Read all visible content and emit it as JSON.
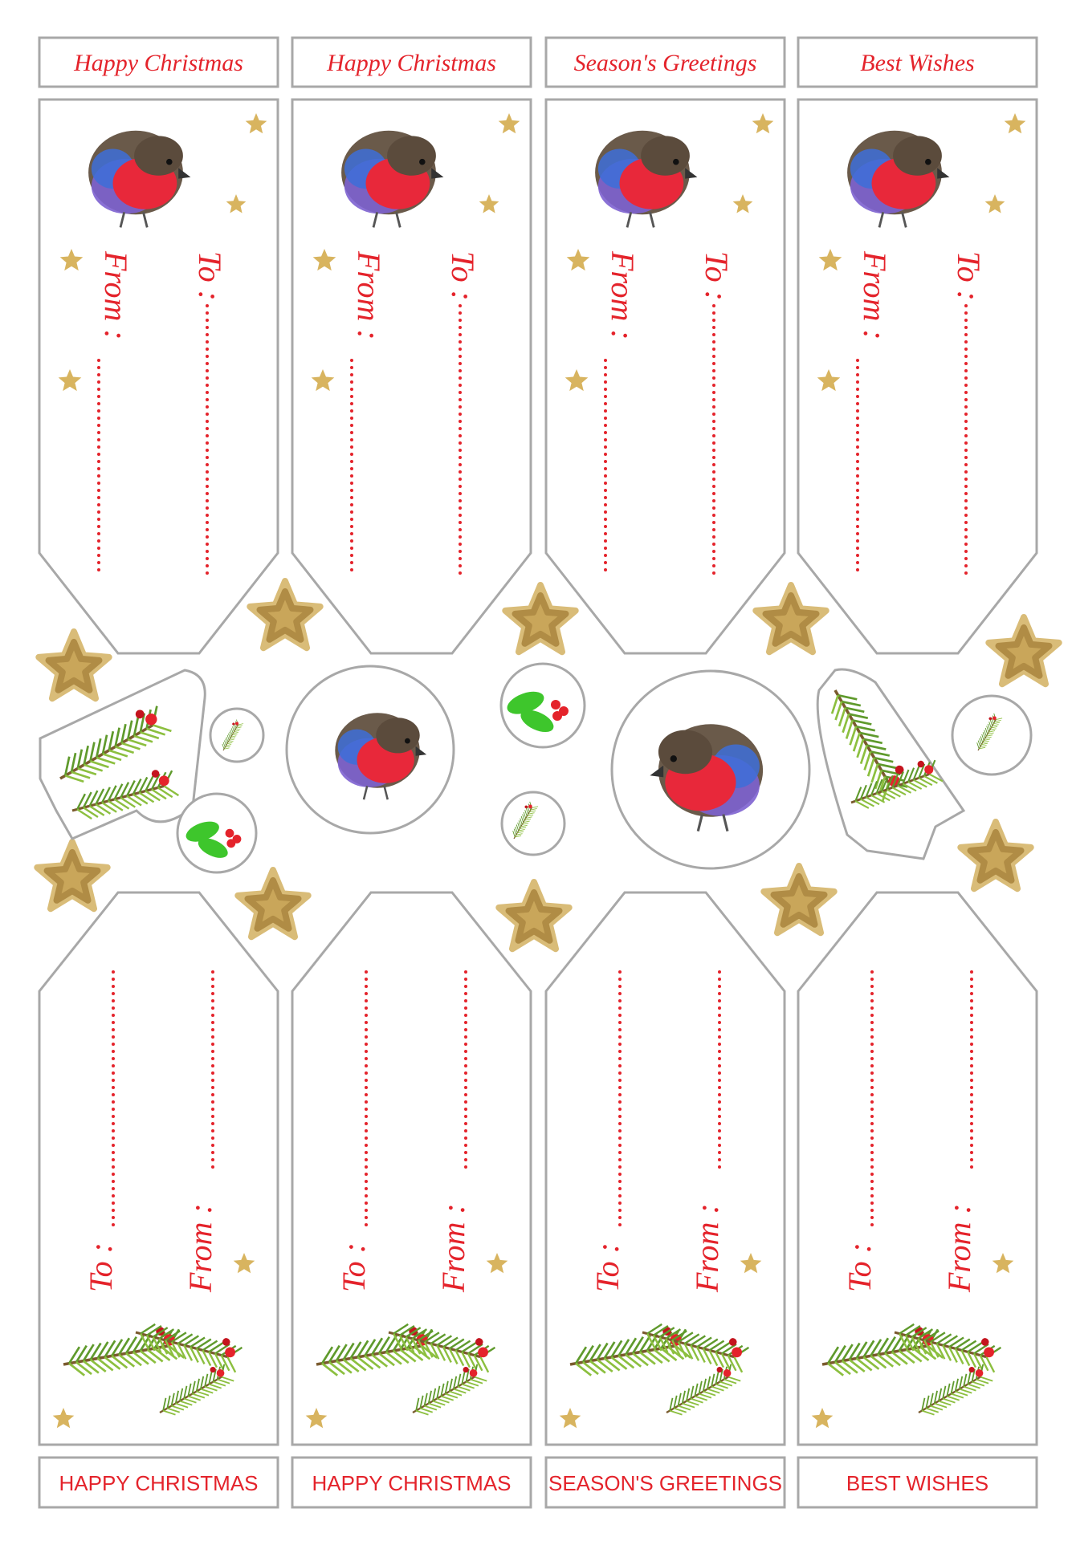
{
  "top_labels": [
    "Happy Christmas",
    "Happy Christmas",
    "Season's Greetings",
    "Best Wishes"
  ],
  "top_tags": [
    {
      "to": "To :",
      "from": "From :"
    },
    {
      "to": "To :",
      "from": "From :"
    },
    {
      "to": "To :",
      "from": "From :"
    },
    {
      "to": "To :",
      "from": "From :"
    }
  ],
  "bottom_tags": [
    {
      "to": "To :",
      "from": "From :"
    },
    {
      "to": "To :",
      "from": "From :"
    },
    {
      "to": "To :",
      "from": "From :"
    },
    {
      "to": "To :",
      "from": "From :"
    }
  ],
  "bottom_labels": [
    "HAPPY CHRISTMAS",
    "HAPPY CHRISTMAS",
    "SEASON'S GREETINGS",
    "BEST WISHES"
  ]
}
